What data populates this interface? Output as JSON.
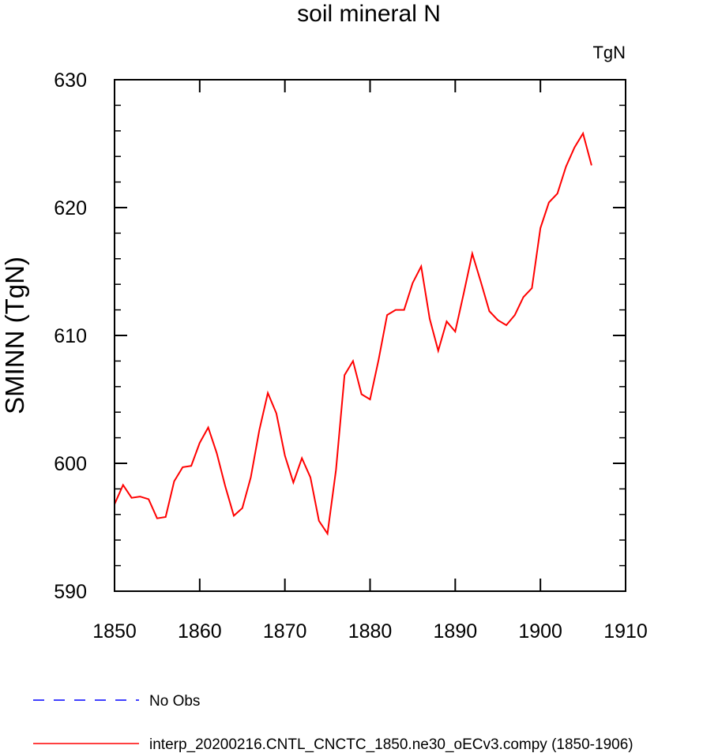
{
  "chart_data": {
    "type": "line",
    "title": "soil mineral N",
    "units": "TgN",
    "ylabel": "SMINN  (TgN)",
    "xlabel": "",
    "xlim": [
      1850,
      1910
    ],
    "ylim": [
      590,
      630
    ],
    "xticks": [
      "1850",
      "1860",
      "1870",
      "1880",
      "1890",
      "1900",
      "1910"
    ],
    "yticks": [
      "590",
      "600",
      "610",
      "620",
      "630"
    ],
    "grid": false,
    "legend_position": "bottom",
    "series": [
      {
        "name": "No Obs",
        "color": "#0000ff",
        "dash": true,
        "x": [],
        "values": []
      },
      {
        "name": "interp_20200216.CNTL_CNCTC_1850.ne30_oECv3.compy (1850-1906)",
        "color": "#ff0000",
        "dash": false,
        "x": [
          1850,
          1851,
          1852,
          1853,
          1854,
          1855,
          1856,
          1857,
          1858,
          1859,
          1860,
          1861,
          1862,
          1863,
          1864,
          1865,
          1866,
          1867,
          1868,
          1869,
          1870,
          1871,
          1872,
          1873,
          1874,
          1875,
          1876,
          1877,
          1878,
          1879,
          1880,
          1881,
          1882,
          1883,
          1884,
          1885,
          1886,
          1887,
          1888,
          1889,
          1890,
          1891,
          1892,
          1893,
          1894,
          1895,
          1896,
          1897,
          1898,
          1899,
          1900,
          1901,
          1902,
          1903,
          1904,
          1905,
          1906
        ],
        "values": [
          596.8,
          598.3,
          597.3,
          597.4,
          597.2,
          595.7,
          595.8,
          598.6,
          599.7,
          599.8,
          601.6,
          602.8,
          600.8,
          598.2,
          595.9,
          596.5,
          598.9,
          602.6,
          605.5,
          603.9,
          600.6,
          598.5,
          600.4,
          598.9,
          595.5,
          594.5,
          599.5,
          606.9,
          608.0,
          605.4,
          605.0,
          608.1,
          611.6,
          612.0,
          612.0,
          614.1,
          615.4,
          611.3,
          608.8,
          611.1,
          610.3,
          613.3,
          616.4,
          614.2,
          611.9,
          611.2,
          610.8,
          611.6,
          613.0,
          613.7,
          618.4,
          620.4,
          621.1,
          623.2,
          624.7,
          625.8,
          623.3
        ]
      }
    ]
  }
}
